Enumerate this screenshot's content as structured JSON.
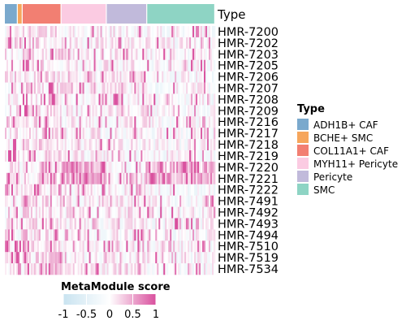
{
  "chart_data": {
    "type": "heatmap",
    "annotation_title": "Type",
    "rows": [
      "HMR-7200",
      "HMR-7202",
      "HMR-7203",
      "HMR-7205",
      "HMR-7206",
      "HMR-7207",
      "HMR-7208",
      "HMR-7209",
      "HMR-7216",
      "HMR-7217",
      "HMR-7218",
      "HMR-7219",
      "HMR-7220",
      "HMR-7221",
      "HMR-7222",
      "HMR-7491",
      "HMR-7492",
      "HMR-7493",
      "HMR-7494",
      "HMR-7510",
      "HMR-7519",
      "HMR-7534"
    ],
    "column_groups": [
      {
        "name": "ADH1B+ CAF",
        "color": "#7aa9cd",
        "n_columns": 8
      },
      {
        "name": "BCHE+ SMC",
        "color": "#f6a65c",
        "n_columns": 3
      },
      {
        "name": "COL11A1+ CAF",
        "color": "#f27f72",
        "n_columns": 24
      },
      {
        "name": "MYH11+ Pericyte",
        "color": "#fbcbe2",
        "n_columns": 28
      },
      {
        "name": "Pericyte",
        "color": "#c1badb",
        "n_columns": 25
      },
      {
        "name": "SMC",
        "color": "#8ed4c4",
        "n_columns": 42
      }
    ],
    "color_scale": {
      "title": "MetaModule score",
      "min": -1,
      "max": 1,
      "ticks": [
        "-1",
        "-0.5",
        "0",
        "0.5",
        "1"
      ],
      "stops": [
        {
          "value": -1,
          "color": "#c9e3f0"
        },
        {
          "value": 0,
          "color": "#ffffff"
        },
        {
          "value": 1,
          "color": "#d9509e"
        }
      ]
    },
    "legend_position": "right"
  }
}
